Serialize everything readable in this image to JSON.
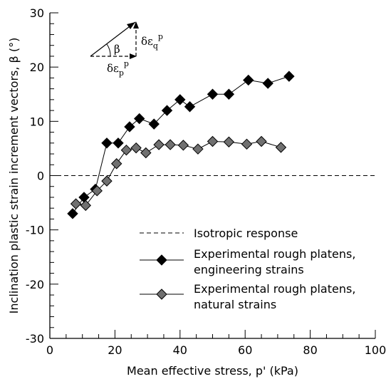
{
  "chart_data": {
    "type": "scatter",
    "xlabel": "Mean effective stress, p' (kPa)",
    "ylabel": "Inclination plastic strain increment vectors, β (°)",
    "xlim": [
      0,
      100
    ],
    "ylim": [
      -30,
      30
    ],
    "x_ticks": [
      "0",
      "20",
      "40",
      "60",
      "80",
      "100"
    ],
    "y_ticks": [
      "-30",
      "-20",
      "-10",
      "0",
      "10",
      "20",
      "30"
    ],
    "grid": false,
    "legend_position": "lower-right",
    "reference_line": {
      "name": "Isotropic response",
      "y": 0,
      "style": "dashed"
    },
    "series": [
      {
        "name_lines": [
          "Experimental rough platens,",
          "engineering strains"
        ],
        "color": "#000000",
        "marker": "diamond",
        "points": [
          [
            7,
            -7
          ],
          [
            10.5,
            -4
          ],
          [
            14,
            -2.5
          ],
          [
            17.5,
            6
          ],
          [
            21,
            6
          ],
          [
            24.5,
            9
          ],
          [
            27.5,
            10.5
          ],
          [
            32,
            9.5
          ],
          [
            36,
            12
          ],
          [
            40,
            14
          ],
          [
            43,
            12.7
          ],
          [
            50,
            15
          ],
          [
            55,
            15
          ],
          [
            61,
            17.6
          ],
          [
            67,
            17
          ],
          [
            73.5,
            18.3
          ]
        ]
      },
      {
        "name_lines": [
          "Experimental rough platens,",
          "natural strains"
        ],
        "color": "#707070",
        "marker": "diamond",
        "points": [
          [
            8,
            -5.2
          ],
          [
            11,
            -5.5
          ],
          [
            14.5,
            -2.8
          ],
          [
            17.5,
            -1
          ],
          [
            20.5,
            2.2
          ],
          [
            23.5,
            4.7
          ],
          [
            26.5,
            5.1
          ],
          [
            29.5,
            4.2
          ],
          [
            33.5,
            5.7
          ],
          [
            37,
            5.7
          ],
          [
            41,
            5.6
          ],
          [
            45.5,
            4.9
          ],
          [
            50,
            6.3
          ],
          [
            55,
            6.2
          ],
          [
            60.5,
            5.8
          ],
          [
            65,
            6.3
          ],
          [
            71,
            5.2
          ]
        ]
      }
    ],
    "inset": {
      "angle_symbol": "β",
      "vertical_label_main": "δε",
      "vertical_label_sub": "q",
      "vertical_label_sup": "p",
      "horizontal_label_main": "δε",
      "horizontal_label_sub": "p",
      "horizontal_label_sup": "p"
    }
  }
}
